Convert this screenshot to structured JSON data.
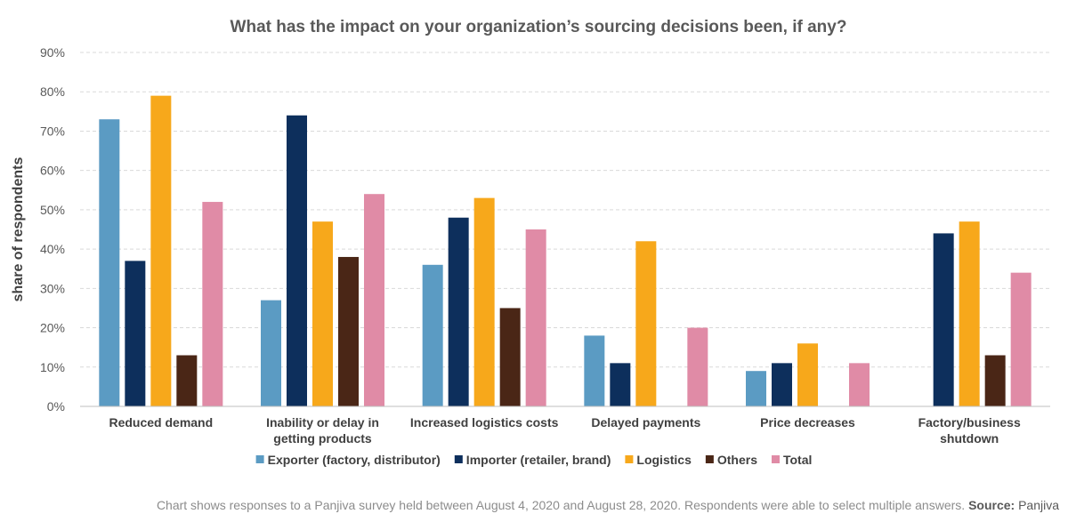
{
  "chart_data": {
    "type": "bar",
    "title": "What has the impact on your organization’s sourcing decisions been, if any?",
    "ylabel": "share of respondents",
    "xlabel": "",
    "ylim": [
      0,
      90
    ],
    "yticks": [
      0,
      10,
      20,
      30,
      40,
      50,
      60,
      70,
      80,
      90
    ],
    "ytick_labels": [
      "0%",
      "10%",
      "20%",
      "30%",
      "40%",
      "50%",
      "60%",
      "70%",
      "80%",
      "90%"
    ],
    "grid": "horizontal dashed",
    "legend_position": "bottom",
    "categories": [
      [
        "Reduced demand"
      ],
      [
        "Inability or delay in",
        "getting products"
      ],
      [
        "Increased logistics costs"
      ],
      [
        "Delayed payments"
      ],
      [
        "Price decreases"
      ],
      [
        "Factory/business",
        "shutdown"
      ]
    ],
    "series": [
      {
        "name": "Exporter (factory, distributor)",
        "color": "#5b9bc3",
        "values": [
          73,
          27,
          36,
          18,
          9,
          null
        ]
      },
      {
        "name": "Importer (retailer, brand)",
        "color": "#0d2f5c",
        "values": [
          37,
          74,
          48,
          11,
          11,
          44
        ]
      },
      {
        "name": "Logistics",
        "color": "#f7a81b",
        "values": [
          79,
          47,
          53,
          42,
          16,
          47
        ]
      },
      {
        "name": "Others",
        "color": "#4a2616",
        "values": [
          13,
          38,
          25,
          null,
          null,
          13
        ]
      },
      {
        "name": "Total",
        "color": "#e08ba6",
        "values": [
          52,
          54,
          45,
          20,
          11,
          34
        ]
      }
    ]
  },
  "footer": {
    "note": "Chart shows responses to a Panjiva survey held between August 4, 2020 and August 28, 2020. Respondents were able to select multiple answers. ",
    "source_label": "Source:",
    "source_value": " Panjiva"
  }
}
